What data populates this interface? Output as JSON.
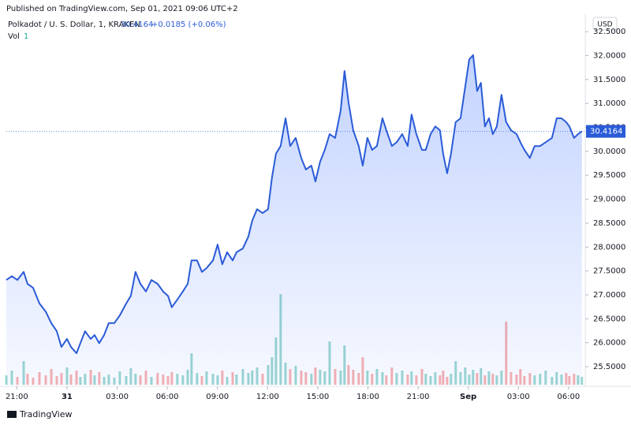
{
  "header": {
    "published": "Published on TradingView.com, Sep 01, 2021 09:06 UTC+2",
    "footer": "TradingView"
  },
  "chart_data": {
    "type": "line",
    "title": "Polkadot / U. S. Dollar, 1, KRAKEN",
    "last_price": 30.4164,
    "last_label": "30.4164",
    "change_label": "+0.0185 (+0.06%)",
    "volume_label": "Vol",
    "volume_setting": "1",
    "currency": "USD",
    "color": "#2a5bd7",
    "up_color": "#26a69a",
    "down_color": "#ef5350",
    "grid": false,
    "x": [
      -3.63,
      -3.3,
      -2.97,
      -2.59,
      -2.36,
      -2.03,
      -1.65,
      -1.27,
      -0.94,
      -0.61,
      -0.33,
      0,
      0.24,
      0.57,
      0.8,
      1.08,
      1.42,
      1.65,
      1.93,
      2.22,
      2.5,
      2.83,
      3.16,
      3.54,
      3.82,
      4.1,
      4.39,
      4.72,
      5.05,
      5.42,
      5.75,
      6.04,
      6.27,
      6.6,
      6.93,
      7.22,
      7.45,
      7.78,
      8.07,
      8.35,
      8.73,
      9.01,
      9.29,
      9.58,
      9.91,
      10.14,
      10.52,
      10.85,
      11.08,
      11.37,
      11.7,
      12.03,
      12.26,
      12.5,
      12.78,
      13.07,
      13.35,
      13.68,
      14.01,
      14.29,
      14.62,
      14.86,
      15.14,
      15.42,
      15.71,
      16.04,
      16.37,
      16.6,
      16.84,
      17.12,
      17.45,
      17.69,
      17.97,
      18.25,
      18.54,
      18.87,
      19.1,
      19.43,
      19.72,
      20.05,
      20.38,
      20.61,
      20.9,
      21.23,
      21.46,
      21.75,
      22.03,
      22.31,
      22.5,
      22.74,
      22.97,
      23.25,
      23.54,
      23.82,
      24.06,
      24.29,
      24.53,
      24.76,
      25.0,
      25.24,
      25.47,
      25.71,
      25.99,
      26.27,
      26.56,
      26.89,
      27.12,
      27.36,
      27.69,
      27.97,
      28.3,
      28.63,
      29.01,
      29.29,
      29.58,
      29.86,
      30.05,
      30.33,
      30.57,
      30.8
    ],
    "values": [
      27.31,
      27.39,
      27.31,
      27.48,
      27.23,
      27.15,
      26.82,
      26.65,
      26.41,
      26.24,
      25.91,
      26.08,
      25.91,
      25.78,
      25.99,
      26.24,
      26.08,
      26.16,
      25.99,
      26.16,
      26.41,
      26.41,
      26.57,
      26.82,
      26.98,
      27.48,
      27.23,
      27.07,
      27.31,
      27.23,
      27.07,
      26.98,
      26.74,
      26.9,
      27.07,
      27.23,
      27.72,
      27.72,
      27.48,
      27.56,
      27.72,
      28.05,
      27.64,
      27.89,
      27.72,
      27.89,
      27.97,
      28.22,
      28.55,
      28.79,
      28.71,
      28.79,
      29.45,
      29.95,
      30.11,
      30.69,
      30.11,
      30.28,
      29.86,
      29.62,
      29.7,
      29.37,
      29.78,
      30.03,
      30.36,
      30.28,
      30.85,
      31.68,
      31.02,
      30.44,
      30.11,
      29.7,
      30.28,
      30.03,
      30.11,
      30.69,
      30.44,
      30.11,
      30.19,
      30.36,
      30.11,
      30.77,
      30.36,
      30.03,
      30.03,
      30.36,
      30.52,
      30.44,
      29.95,
      29.54,
      29.95,
      30.61,
      30.69,
      31.35,
      31.92,
      32.01,
      31.26,
      31.43,
      30.52,
      30.69,
      30.36,
      30.52,
      31.18,
      30.61,
      30.44,
      30.36,
      30.19,
      30.03,
      29.86,
      30.11,
      30.11,
      30.19,
      30.28,
      30.69,
      30.69,
      30.61,
      30.52,
      30.28,
      30.36,
      30.42
    ],
    "volume": {
      "values": [
        12,
        18,
        10,
        30,
        14,
        9,
        16,
        12,
        20,
        11,
        15,
        22,
        13,
        18,
        10,
        14,
        19,
        12,
        16,
        10,
        13,
        9,
        17,
        11,
        21,
        14,
        12,
        18,
        10,
        15,
        13,
        11,
        16,
        14,
        12,
        19,
        40,
        15,
        11,
        17,
        14,
        12,
        18,
        10,
        16,
        13,
        20,
        15,
        18,
        22,
        14,
        25,
        35,
        60,
        115,
        28,
        20,
        24,
        18,
        16,
        14,
        22,
        19,
        17,
        55,
        20,
        18,
        50,
        25,
        19,
        15,
        35,
        18,
        14,
        20,
        16,
        12,
        22,
        15,
        18,
        13,
        17,
        12,
        20,
        14,
        11,
        16,
        12,
        18,
        10,
        14,
        30,
        16,
        22,
        13,
        19,
        15,
        21,
        12,
        17,
        14,
        12,
        18,
        80,
        16,
        13,
        20,
        11,
        15,
        12,
        14,
        18,
        10,
        16,
        13,
        15,
        11,
        14,
        12,
        10
      ]
    },
    "xlim": [
      -3.63,
      31.0
    ],
    "ylim": [
      25.17,
      32.8
    ],
    "xticks": [
      {
        "value": -3,
        "label": "21:00"
      },
      {
        "value": 0,
        "label": "31"
      },
      {
        "value": 3,
        "label": "03:00"
      },
      {
        "value": 6,
        "label": "06:00"
      },
      {
        "value": 9,
        "label": "09:00"
      },
      {
        "value": 12,
        "label": "12:00"
      },
      {
        "value": 15,
        "label": "15:00"
      },
      {
        "value": 18,
        "label": "18:00"
      },
      {
        "value": 21,
        "label": "21:00"
      },
      {
        "value": 24,
        "label": "Sep"
      },
      {
        "value": 27,
        "label": "03:00"
      },
      {
        "value": 30,
        "label": "06:00"
      }
    ],
    "yticks": [
      {
        "value": 25.5,
        "label": "25.5000"
      },
      {
        "value": 26,
        "label": "26.0000"
      },
      {
        "value": 26.5,
        "label": "26.5000"
      },
      {
        "value": 27,
        "label": "27.0000"
      },
      {
        "value": 27.5,
        "label": "27.5000"
      },
      {
        "value": 28,
        "label": "28.0000"
      },
      {
        "value": 28.5,
        "label": "28.5000"
      },
      {
        "value": 29,
        "label": "29.0000"
      },
      {
        "value": 29.5,
        "label": "29.5000"
      },
      {
        "value": 30,
        "label": "30.0000"
      },
      {
        "value": 30.5,
        "label": "30.5000"
      },
      {
        "value": 31,
        "label": "31.0000"
      },
      {
        "value": 31.5,
        "label": "31.5000"
      },
      {
        "value": 32,
        "label": "32.0000"
      },
      {
        "value": 32.5,
        "label": "32.5000"
      }
    ]
  }
}
